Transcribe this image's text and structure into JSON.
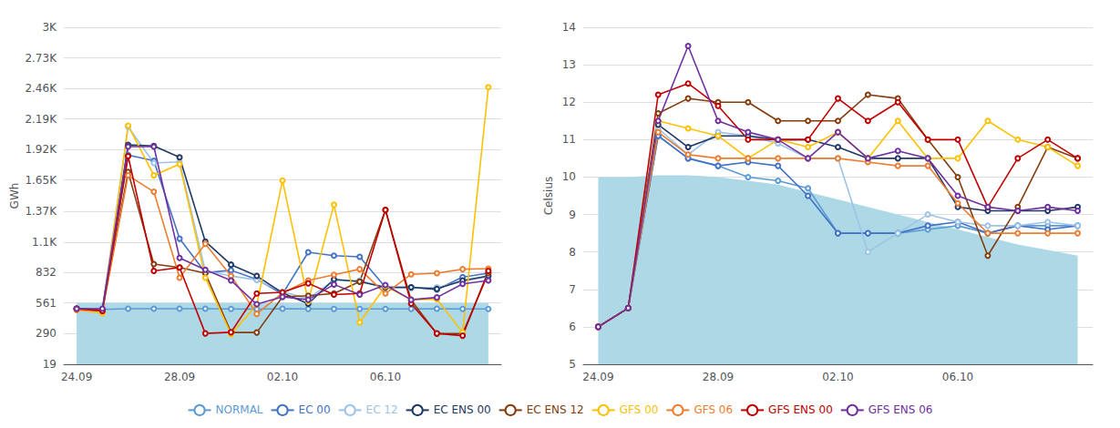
{
  "chart_data": [
    {
      "type": "line",
      "ylabel": "GWh",
      "categories": [
        "24.09",
        null,
        null,
        null,
        "28.09",
        null,
        null,
        null,
        "02.10",
        null,
        null,
        null,
        "06.10",
        null,
        null,
        null,
        null
      ],
      "ylim": [
        19,
        3000
      ],
      "yticks": [
        19,
        290,
        561,
        832,
        {
          "value": 1100,
          "label": "1.1K"
        },
        {
          "value": 1370,
          "label": "1.37K"
        },
        {
          "value": 1650,
          "label": "1.65K"
        },
        {
          "value": 1920,
          "label": "1.92K"
        },
        {
          "value": 2190,
          "label": "2.19K"
        },
        {
          "value": 2460,
          "label": "2.46K"
        },
        {
          "value": 2730,
          "label": "2.73K"
        },
        {
          "value": 3000,
          "label": "3K"
        }
      ],
      "grid": true,
      "legend": "bottom",
      "marker": "circle",
      "fill": {
        "values": [
          561,
          561,
          561,
          561,
          561,
          561,
          561,
          561,
          561,
          561,
          561,
          561,
          561,
          561,
          561,
          561,
          561
        ],
        "bottom": 19,
        "color": "#add8e6"
      },
      "series": [
        {
          "name": "NORMAL",
          "color": "#5b9bd5",
          "values": [
            510,
            505,
            510,
            510,
            510,
            510,
            508,
            507,
            510,
            509,
            508,
            509,
            508,
            509,
            510,
            508,
            509
          ]
        },
        {
          "name": "EC 00",
          "color": "#4472c4",
          "values": [
            510,
            500,
            1870,
            1820,
            1130,
            830,
            850,
            770,
            640,
            1010,
            980,
            970,
            700,
            700,
            680,
            790,
            825
          ]
        },
        {
          "name": "EC 12",
          "color": "#9dc3e6",
          "values": [
            510,
            505,
            2120,
            1800,
            1810,
            845,
            800,
            765,
            660,
            600,
            760,
            760,
            700,
            690,
            700,
            750,
            795
          ]
        },
        {
          "name": "EC ENS 00",
          "color": "#1f3864",
          "values": [
            510,
            500,
            1960,
            1950,
            1850,
            1105,
            900,
            800,
            650,
            555,
            770,
            750,
            700,
            700,
            685,
            760,
            800
          ]
        },
        {
          "name": "EC ENS 12",
          "color": "#843c0c",
          "values": [
            510,
            500,
            1720,
            905,
            875,
            825,
            300,
            300,
            615,
            625,
            645,
            750,
            1385,
            585,
            290,
            292,
            825
          ]
        },
        {
          "name": "GFS 00",
          "color": "#ffc000",
          "values": [
            500,
            470,
            2130,
            1690,
            1790,
            785,
            285,
            545,
            1645,
            575,
            1430,
            390,
            710,
            590,
            595,
            300,
            2470
          ]
        },
        {
          "name": "GFS 06",
          "color": "#ed7d31",
          "values": [
            500,
            490,
            1690,
            1545,
            785,
            1085,
            800,
            465,
            650,
            760,
            810,
            860,
            645,
            815,
            825,
            860,
            865
          ]
        },
        {
          "name": "GFS ENS 00",
          "color": "#c00000",
          "values": [
            510,
            490,
            1860,
            845,
            875,
            292,
            302,
            645,
            655,
            735,
            635,
            645,
            1385,
            555,
            292,
            272,
            845
          ]
        },
        {
          "name": "GFS ENS 06",
          "color": "#7030a0",
          "values": [
            510,
            510,
            1945,
            1945,
            960,
            855,
            760,
            550,
            615,
            590,
            725,
            635,
            720,
            590,
            610,
            730,
            760
          ]
        }
      ]
    },
    {
      "type": "line",
      "ylabel": "Celsius",
      "categories": [
        "24.09",
        null,
        null,
        null,
        "28.09",
        null,
        null,
        null,
        "02.10",
        null,
        null,
        null,
        "06.10",
        null,
        null,
        null,
        null
      ],
      "ylim": [
        5,
        14
      ],
      "yticks": [
        5,
        6,
        7,
        8,
        9,
        10,
        11,
        12,
        13,
        14
      ],
      "grid": true,
      "legend": "bottom",
      "marker": "circle",
      "fill": {
        "values": [
          10.0,
          10.0,
          10.05,
          10.05,
          10.0,
          9.9,
          9.8,
          9.6,
          9.4,
          9.2,
          9.0,
          8.8,
          8.6,
          8.4,
          8.2,
          8.05,
          7.9
        ],
        "bottom": 5,
        "color": "#add8e6"
      },
      "series": [
        {
          "name": "NORMAL",
          "color": "#5b9bd5",
          "values": [
            6.0,
            6.5,
            11.1,
            10.5,
            10.3,
            10.0,
            9.9,
            9.7,
            8.5,
            8.5,
            8.5,
            8.6,
            8.7,
            8.5,
            8.7,
            8.7,
            8.7
          ]
        },
        {
          "name": "EC 00",
          "color": "#4472c4",
          "values": [
            6.0,
            6.5,
            11.1,
            10.5,
            10.3,
            10.4,
            10.3,
            9.5,
            8.5,
            8.5,
            8.5,
            8.7,
            8.8,
            8.5,
            8.7,
            8.6,
            8.7
          ]
        },
        {
          "name": "EC 12",
          "color": "#9dc3e6",
          "values": [
            6.0,
            6.5,
            11.3,
            10.6,
            11.2,
            11.1,
            10.9,
            10.5,
            10.5,
            8.0,
            8.5,
            9.0,
            8.8,
            8.7,
            8.7,
            8.8,
            8.7
          ]
        },
        {
          "name": "EC ENS 00",
          "color": "#1f3864",
          "values": [
            6.0,
            6.5,
            11.4,
            10.8,
            11.1,
            11.1,
            11.0,
            11.0,
            10.8,
            10.5,
            10.5,
            10.5,
            9.2,
            9.1,
            9.1,
            9.1,
            9.2
          ]
        },
        {
          "name": "EC ENS 12",
          "color": "#843c0c",
          "values": [
            6.0,
            6.5,
            11.7,
            12.1,
            12.0,
            12.0,
            11.5,
            11.5,
            11.5,
            12.2,
            12.1,
            11.0,
            10.0,
            7.9,
            9.2,
            10.8,
            10.5
          ]
        },
        {
          "name": "GFS 00",
          "color": "#ffc000",
          "values": [
            6.0,
            6.5,
            11.5,
            11.3,
            11.1,
            10.5,
            11.0,
            10.8,
            11.2,
            10.5,
            11.5,
            10.5,
            10.5,
            11.5,
            11.0,
            10.8,
            10.3
          ]
        },
        {
          "name": "GFS 06",
          "color": "#ed7d31",
          "values": [
            6.0,
            6.5,
            11.2,
            10.6,
            10.5,
            10.5,
            10.5,
            10.5,
            10.5,
            10.4,
            10.3,
            10.3,
            9.3,
            8.5,
            8.5,
            8.5,
            8.5
          ]
        },
        {
          "name": "GFS ENS 00",
          "color": "#c00000",
          "values": [
            6.0,
            6.5,
            12.2,
            12.5,
            11.9,
            11.0,
            11.0,
            11.0,
            12.1,
            11.5,
            12.0,
            11.0,
            11.0,
            9.2,
            10.5,
            11.0,
            10.5
          ]
        },
        {
          "name": "GFS ENS 06",
          "color": "#7030a0",
          "values": [
            6.0,
            6.5,
            11.5,
            13.5,
            11.5,
            11.2,
            11.0,
            10.5,
            11.2,
            10.5,
            10.7,
            10.5,
            9.5,
            9.2,
            9.1,
            9.2,
            9.1
          ]
        }
      ]
    }
  ]
}
